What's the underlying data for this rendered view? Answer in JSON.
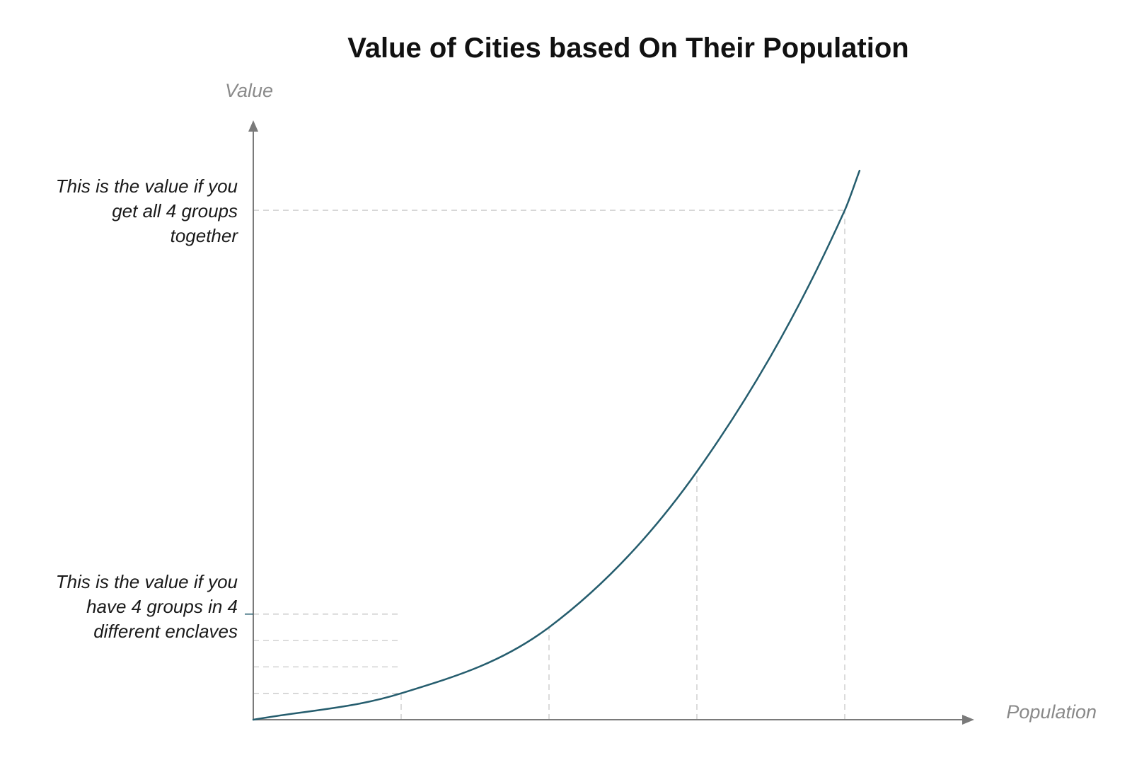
{
  "chart_data": {
    "type": "line",
    "title": "Value of Cities based On Their Population",
    "xlabel": "Population",
    "ylabel": "Value",
    "grid": false,
    "legend": "none",
    "series": [
      {
        "x": [
          0,
          1,
          2,
          3,
          4,
          4.1
        ],
        "values": [
          0,
          1,
          3.5,
          9.4,
          19.3,
          20.8
        ]
      }
    ],
    "x_guides": [
      1,
      2,
      3,
      4
    ],
    "enclave_levels": [
      1,
      2,
      3,
      4
    ],
    "annotations": [
      {
        "lines": [
          "This is the value if you",
          "get all 4 groups",
          "together"
        ],
        "y": 19.3
      },
      {
        "lines": [
          "This is the value if you",
          "have 4 groups in 4",
          "different enclaves"
        ],
        "y": 4
      }
    ],
    "colors": {
      "curve": "#255d6e",
      "axis": "#7a7a7a",
      "guide": "#c8c8c8",
      "axis_label": "#8a8a8a"
    }
  }
}
